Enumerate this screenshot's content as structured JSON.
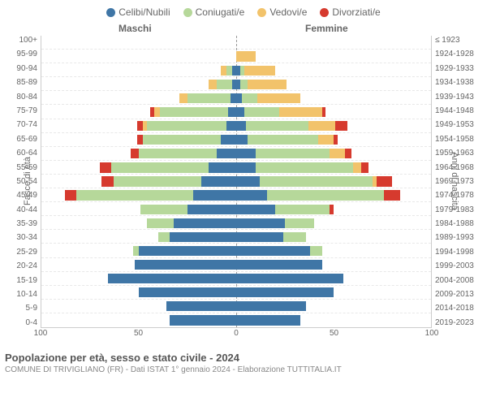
{
  "legend": [
    {
      "label": "Celibi/Nubili",
      "color": "#3f76a6"
    },
    {
      "label": "Coniugati/e",
      "color": "#b6d89a"
    },
    {
      "label": "Vedovi/e",
      "color": "#f2c36b"
    },
    {
      "label": "Divorziati/e",
      "color": "#d63a2e"
    }
  ],
  "header": {
    "male": "Maschi",
    "female": "Femmine"
  },
  "yleft_title": "Fasce di età",
  "yright_title": "Anni di nascita",
  "xaxis": {
    "ticks": [
      100,
      50,
      0,
      50,
      100
    ],
    "max": 100
  },
  "colors": {
    "celibi": "#3f76a6",
    "coniugati": "#b6d89a",
    "vedovi": "#f2c36b",
    "divorziati": "#d63a2e",
    "grid": "#e8e8e8",
    "axis": "#cccccc",
    "center_dash": "#999999",
    "text": "#666666",
    "background": "#ffffff"
  },
  "typography": {
    "axis_fontsize": 10,
    "legend_fontsize": 12,
    "title_fontsize": 13
  },
  "rows": [
    {
      "age": "100+",
      "birth": "≤ 1923",
      "male": {
        "cel": 0,
        "con": 0,
        "ved": 0,
        "div": 0
      },
      "female": {
        "cel": 0,
        "con": 0,
        "ved": 0,
        "div": 0
      }
    },
    {
      "age": "95-99",
      "birth": "1924-1928",
      "male": {
        "cel": 0,
        "con": 0,
        "ved": 0,
        "div": 0
      },
      "female": {
        "cel": 0,
        "con": 0,
        "ved": 10,
        "div": 0
      }
    },
    {
      "age": "90-94",
      "birth": "1929-1933",
      "male": {
        "cel": 2,
        "con": 3,
        "ved": 3,
        "div": 0
      },
      "female": {
        "cel": 2,
        "con": 2,
        "ved": 16,
        "div": 0
      }
    },
    {
      "age": "85-89",
      "birth": "1934-1938",
      "male": {
        "cel": 2,
        "con": 8,
        "ved": 4,
        "div": 0
      },
      "female": {
        "cel": 2,
        "con": 4,
        "ved": 20,
        "div": 0
      }
    },
    {
      "age": "80-84",
      "birth": "1939-1943",
      "male": {
        "cel": 3,
        "con": 22,
        "ved": 4,
        "div": 0
      },
      "female": {
        "cel": 3,
        "con": 8,
        "ved": 22,
        "div": 0
      }
    },
    {
      "age": "75-79",
      "birth": "1944-1948",
      "male": {
        "cel": 4,
        "con": 35,
        "ved": 3,
        "div": 2
      },
      "female": {
        "cel": 4,
        "con": 18,
        "ved": 22,
        "div": 2
      }
    },
    {
      "age": "70-74",
      "birth": "1949-1953",
      "male": {
        "cel": 5,
        "con": 41,
        "ved": 2,
        "div": 3
      },
      "female": {
        "cel": 5,
        "con": 32,
        "ved": 14,
        "div": 6
      }
    },
    {
      "age": "65-69",
      "birth": "1954-1958",
      "male": {
        "cel": 8,
        "con": 40,
        "ved": 0,
        "div": 3
      },
      "female": {
        "cel": 6,
        "con": 36,
        "ved": 8,
        "div": 2
      }
    },
    {
      "age": "60-64",
      "birth": "1959-1963",
      "male": {
        "cel": 10,
        "con": 40,
        "ved": 0,
        "div": 4
      },
      "female": {
        "cel": 10,
        "con": 38,
        "ved": 8,
        "div": 3
      }
    },
    {
      "age": "55-59",
      "birth": "1964-1968",
      "male": {
        "cel": 14,
        "con": 50,
        "ved": 0,
        "div": 6
      },
      "female": {
        "cel": 10,
        "con": 50,
        "ved": 4,
        "div": 4
      }
    },
    {
      "age": "50-54",
      "birth": "1969-1973",
      "male": {
        "cel": 18,
        "con": 45,
        "ved": 0,
        "div": 6
      },
      "female": {
        "cel": 12,
        "con": 58,
        "ved": 2,
        "div": 8
      }
    },
    {
      "age": "45-49",
      "birth": "1974-1978",
      "male": {
        "cel": 22,
        "con": 60,
        "ved": 0,
        "div": 6
      },
      "female": {
        "cel": 16,
        "con": 60,
        "ved": 0,
        "div": 8
      }
    },
    {
      "age": "40-44",
      "birth": "1979-1983",
      "male": {
        "cel": 25,
        "con": 24,
        "ved": 0,
        "div": 0
      },
      "female": {
        "cel": 20,
        "con": 28,
        "ved": 0,
        "div": 2
      }
    },
    {
      "age": "35-39",
      "birth": "1984-1988",
      "male": {
        "cel": 32,
        "con": 14,
        "ved": 0,
        "div": 0
      },
      "female": {
        "cel": 25,
        "con": 15,
        "ved": 0,
        "div": 0
      }
    },
    {
      "age": "30-34",
      "birth": "1989-1993",
      "male": {
        "cel": 34,
        "con": 6,
        "ved": 0,
        "div": 0
      },
      "female": {
        "cel": 24,
        "con": 12,
        "ved": 0,
        "div": 0
      }
    },
    {
      "age": "25-29",
      "birth": "1994-1998",
      "male": {
        "cel": 50,
        "con": 3,
        "ved": 0,
        "div": 0
      },
      "female": {
        "cel": 38,
        "con": 6,
        "ved": 0,
        "div": 0
      }
    },
    {
      "age": "20-24",
      "birth": "1999-2003",
      "male": {
        "cel": 52,
        "con": 0,
        "ved": 0,
        "div": 0
      },
      "female": {
        "cel": 44,
        "con": 0,
        "ved": 0,
        "div": 0
      }
    },
    {
      "age": "15-19",
      "birth": "2004-2008",
      "male": {
        "cel": 66,
        "con": 0,
        "ved": 0,
        "div": 0
      },
      "female": {
        "cel": 55,
        "con": 0,
        "ved": 0,
        "div": 0
      }
    },
    {
      "age": "10-14",
      "birth": "2009-2013",
      "male": {
        "cel": 50,
        "con": 0,
        "ved": 0,
        "div": 0
      },
      "female": {
        "cel": 50,
        "con": 0,
        "ved": 0,
        "div": 0
      }
    },
    {
      "age": "5-9",
      "birth": "2014-2018",
      "male": {
        "cel": 36,
        "con": 0,
        "ved": 0,
        "div": 0
      },
      "female": {
        "cel": 36,
        "con": 0,
        "ved": 0,
        "div": 0
      }
    },
    {
      "age": "0-4",
      "birth": "2019-2023",
      "male": {
        "cel": 34,
        "con": 0,
        "ved": 0,
        "div": 0
      },
      "female": {
        "cel": 33,
        "con": 0,
        "ved": 0,
        "div": 0
      }
    }
  ],
  "title": "Popolazione per età, sesso e stato civile - 2024",
  "subtitle": "COMUNE DI TRIVIGLIANO (FR) - Dati ISTAT 1° gennaio 2024 - Elaborazione TUTTITALIA.IT"
}
